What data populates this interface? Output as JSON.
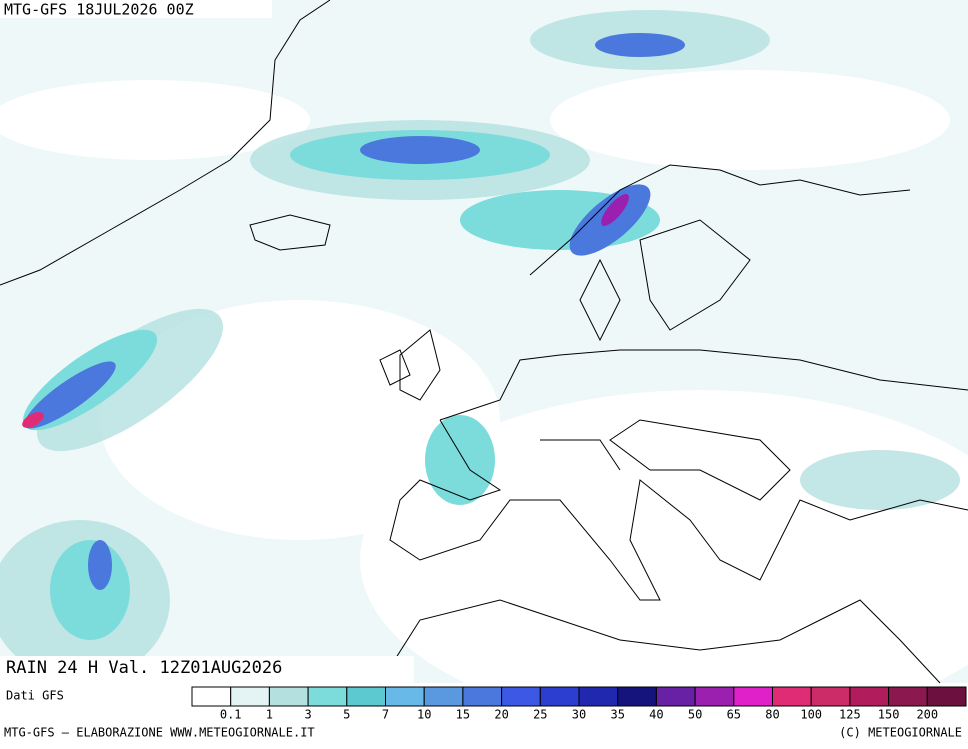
{
  "header": {
    "title": "MTG-GFS 18JUL2026 00Z"
  },
  "map": {
    "label": "RAIN 24 H Val. 12Z01AUG2026"
  },
  "legend": {
    "source": "Dati GFS",
    "colors": [
      "#ffffff",
      "#e4f4f4",
      "#b4e0e0",
      "#7cdcdc",
      "#5cc8d0",
      "#68b8e8",
      "#5a98e0",
      "#4a78dc",
      "#3c58e4",
      "#2c3ed0",
      "#2028b0",
      "#14147c",
      "#6820a4",
      "#9c20b0",
      "#e020c8",
      "#e02c74",
      "#cc2c68",
      "#b01c5c",
      "#8c1850",
      "#6c1040"
    ],
    "labels": [
      0.1,
      1,
      3,
      5,
      7,
      10,
      15,
      20,
      25,
      30,
      35,
      40,
      50,
      65,
      80,
      100,
      125,
      150,
      200
    ]
  },
  "footer": {
    "left": "MTG-GFS — ELABORAZIONE WWW.METEOGIORNALE.IT",
    "right": "(C) METEOGIORNALE"
  }
}
